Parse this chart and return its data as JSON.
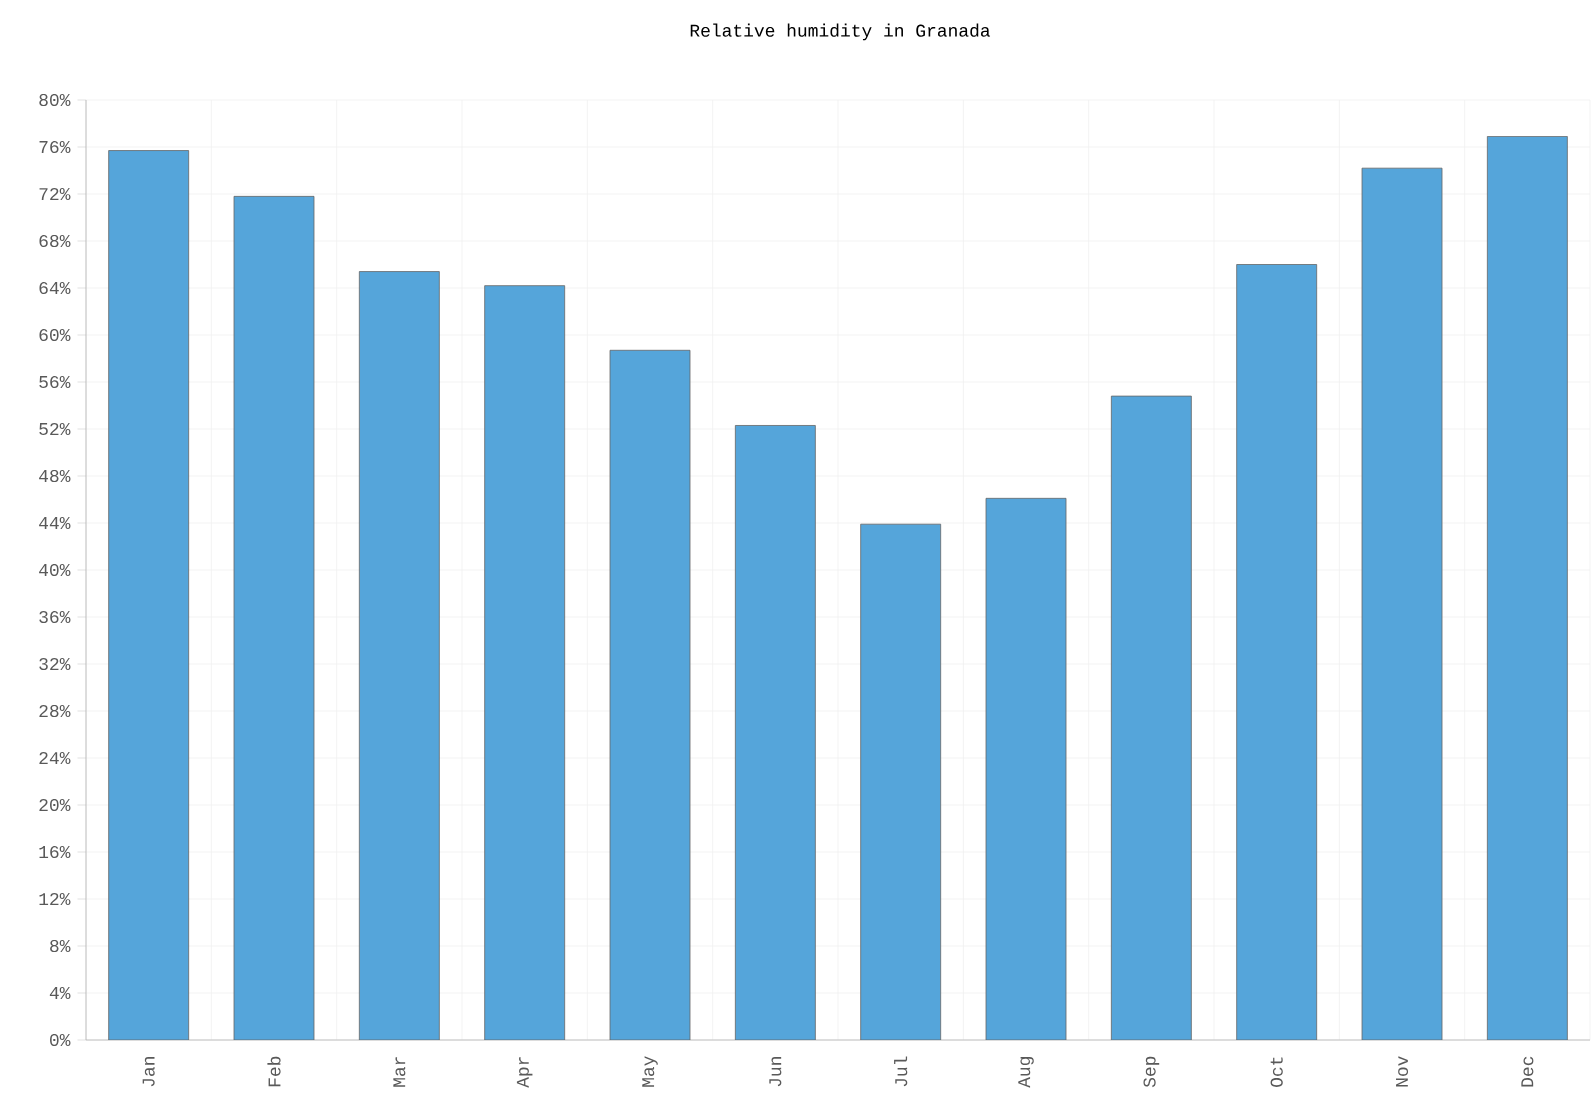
{
  "chart_data": {
    "type": "bar",
    "title": "Relative humidity in Granada",
    "categories": [
      "Jan",
      "Feb",
      "Mar",
      "Apr",
      "May",
      "Jun",
      "Jul",
      "Aug",
      "Sep",
      "Oct",
      "Nov",
      "Dec"
    ],
    "values": [
      75.7,
      71.8,
      65.4,
      64.2,
      58.7,
      52.3,
      43.9,
      46.1,
      54.8,
      66.0,
      74.2,
      76.9
    ],
    "color": "#55a5da",
    "ylim": [
      0,
      80
    ],
    "yticks": [
      {
        "value": 0,
        "label": "0%"
      },
      {
        "value": 4,
        "label": "4%"
      },
      {
        "value": 8,
        "label": "8%"
      },
      {
        "value": 12,
        "label": "12%"
      },
      {
        "value": 16,
        "label": "16%"
      },
      {
        "value": 20,
        "label": "20%"
      },
      {
        "value": 24,
        "label": "24%"
      },
      {
        "value": 28,
        "label": "28%"
      },
      {
        "value": 32,
        "label": "32%"
      },
      {
        "value": 36,
        "label": "36%"
      },
      {
        "value": 40,
        "label": "40%"
      },
      {
        "value": 44,
        "label": "44%"
      },
      {
        "value": 48,
        "label": "48%"
      },
      {
        "value": 52,
        "label": "52%"
      },
      {
        "value": 56,
        "label": "56%"
      },
      {
        "value": 60,
        "label": "60%"
      },
      {
        "value": 64,
        "label": "64%"
      },
      {
        "value": 68,
        "label": "68%"
      },
      {
        "value": 72,
        "label": "72%"
      },
      {
        "value": 76,
        "label": "76%"
      },
      {
        "value": 80,
        "label": "80%"
      }
    ],
    "grid": true
  }
}
